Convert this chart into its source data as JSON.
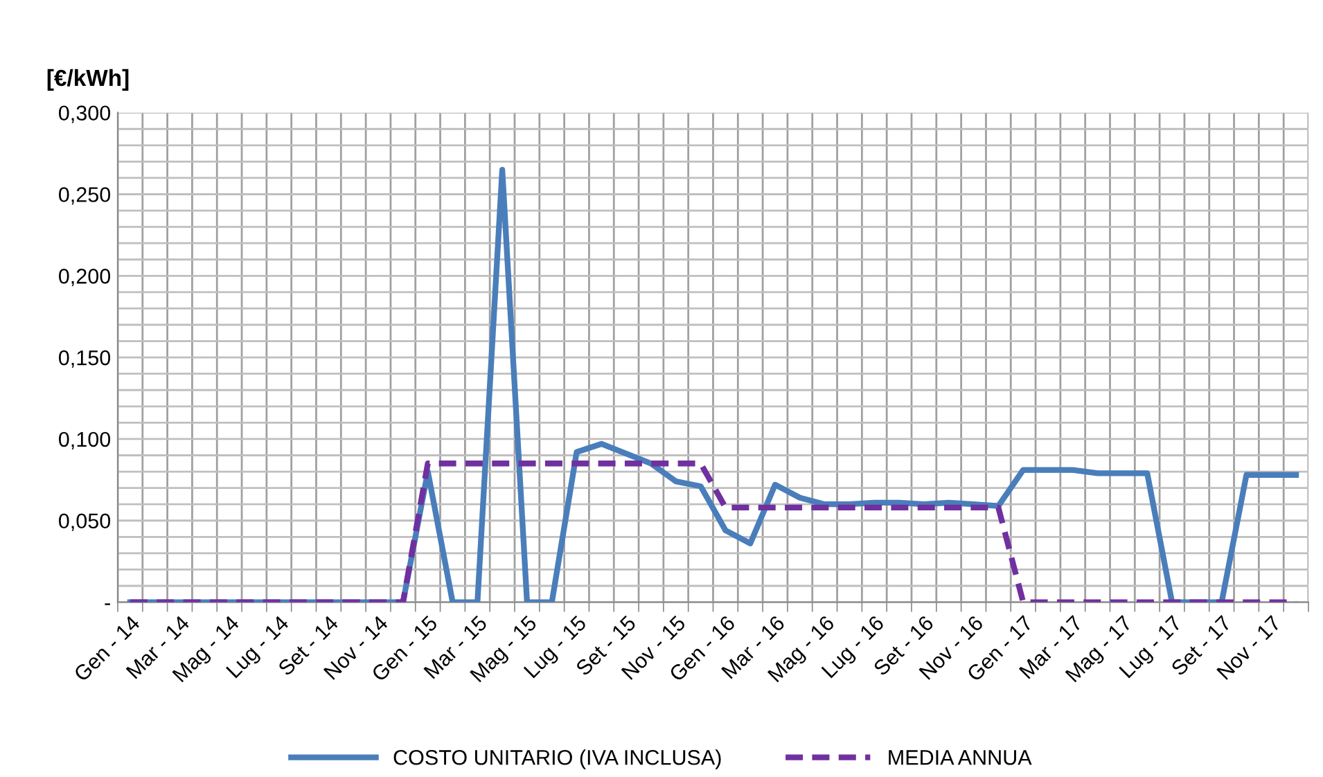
{
  "chart_data": {
    "type": "line",
    "ylabel": "[€/kWh]",
    "categories": [
      "Gen - 14",
      null,
      "Mar - 14",
      null,
      "Mag - 14",
      null,
      "Lug - 14",
      null,
      "Set - 14",
      null,
      "Nov - 14",
      null,
      "Gen - 15",
      null,
      "Mar - 15",
      null,
      "Mag - 15",
      null,
      "Lug - 15",
      null,
      "Set - 15",
      null,
      "Nov - 15",
      null,
      "Gen - 16",
      null,
      "Mar - 16",
      null,
      "Mag - 16",
      null,
      "Lug - 16",
      null,
      "Set - 16",
      null,
      "Nov - 16",
      null,
      "Gen - 17",
      null,
      "Mar - 17",
      null,
      "Mag - 17",
      null,
      "Lug - 17",
      null,
      "Set - 17",
      null,
      "Nov - 17",
      null
    ],
    "series": [
      {
        "name": "COSTO UNITARIO (IVA INCLUSA)",
        "color": "#4a7ebb",
        "line_style": "solid",
        "values": [
          0,
          0,
          0,
          0,
          0,
          0,
          0,
          0,
          0,
          0,
          0,
          0,
          0.08,
          0,
          0,
          0.265,
          0,
          0,
          0.092,
          0.097,
          0.091,
          0.085,
          0.074,
          0.071,
          0.044,
          0.036,
          0.072,
          0.064,
          0.06,
          0.06,
          0.061,
          0.061,
          0.06,
          0.061,
          0.06,
          0.059,
          0.081,
          0.081,
          0.081,
          0.079,
          0.079,
          0.079,
          0,
          0,
          0,
          0.078,
          0.078,
          0.078
        ]
      },
      {
        "name": "MEDIA ANNUA",
        "color": "#7030a0",
        "line_style": "dashed",
        "values": [
          0,
          0,
          0,
          0,
          0,
          0,
          0,
          0,
          0,
          0,
          0,
          0,
          0.085,
          0.085,
          0.085,
          0.085,
          0.085,
          0.085,
          0.085,
          0.085,
          0.085,
          0.085,
          0.085,
          0.085,
          0.058,
          0.058,
          0.058,
          0.058,
          0.058,
          0.058,
          0.058,
          0.058,
          0.058,
          0.058,
          0.058,
          0.058,
          0,
          0,
          0,
          0,
          0,
          0,
          0,
          0,
          0,
          0,
          0,
          0
        ]
      }
    ],
    "ylim": [
      0,
      0.3
    ],
    "yticks": [
      {
        "value": 0,
        "label": "-"
      },
      {
        "value": 0.01,
        "label": null
      },
      {
        "value": 0.02,
        "label": null
      },
      {
        "value": 0.03,
        "label": null
      },
      {
        "value": 0.04,
        "label": null
      },
      {
        "value": 0.05,
        "label": "0,050"
      },
      {
        "value": 0.06,
        "label": null
      },
      {
        "value": 0.07,
        "label": null
      },
      {
        "value": 0.08,
        "label": null
      },
      {
        "value": 0.09,
        "label": null
      },
      {
        "value": 0.1,
        "label": "0,100"
      },
      {
        "value": 0.11,
        "label": null
      },
      {
        "value": 0.12,
        "label": null
      },
      {
        "value": 0.13,
        "label": null
      },
      {
        "value": 0.14,
        "label": null
      },
      {
        "value": 0.15,
        "label": "0,150"
      },
      {
        "value": 0.16,
        "label": null
      },
      {
        "value": 0.17,
        "label": null
      },
      {
        "value": 0.18,
        "label": null
      },
      {
        "value": 0.19,
        "label": null
      },
      {
        "value": 0.2,
        "label": "0,200"
      },
      {
        "value": 0.21,
        "label": null
      },
      {
        "value": 0.22,
        "label": null
      },
      {
        "value": 0.23,
        "label": null
      },
      {
        "value": 0.24,
        "label": null
      },
      {
        "value": 0.25,
        "label": "0,250"
      },
      {
        "value": 0.26,
        "label": null
      },
      {
        "value": 0.27,
        "label": null
      },
      {
        "value": 0.28,
        "label": null
      },
      {
        "value": 0.29,
        "label": null
      },
      {
        "value": 0.3,
        "label": "0,300"
      }
    ],
    "grid": true,
    "legend": "bottom",
    "marker": "none"
  }
}
